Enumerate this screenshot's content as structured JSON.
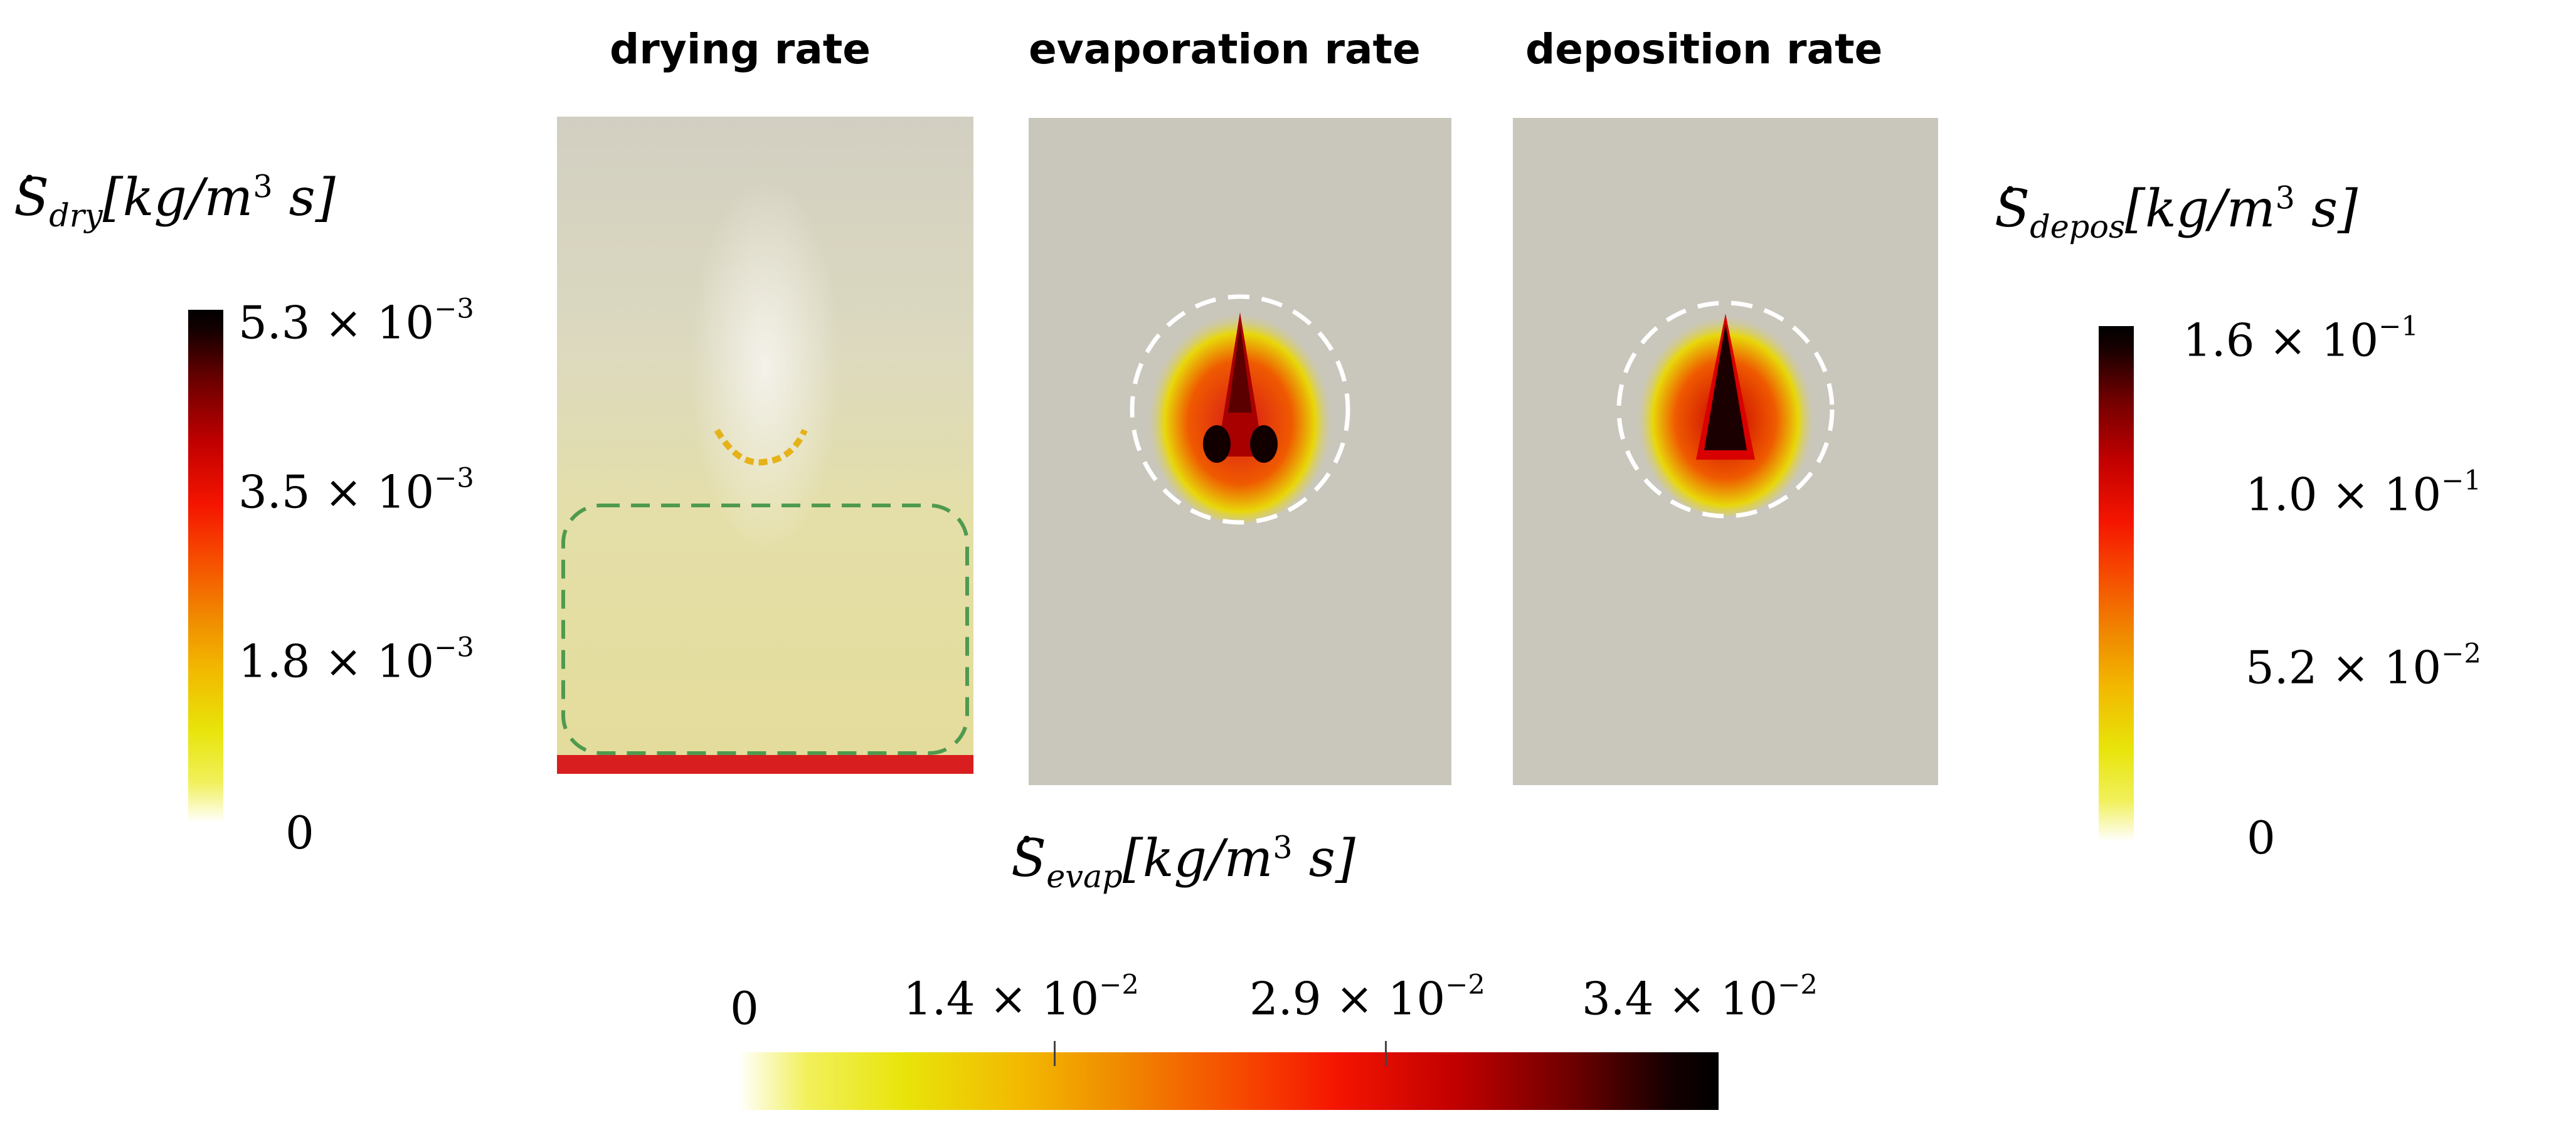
{
  "panels": {
    "drying": {
      "title": "drying rate"
    },
    "evaporation": {
      "title": "evaporation rate"
    },
    "deposition": {
      "title": "deposition rate"
    }
  },
  "colorbars": {
    "drying": {
      "label_sym": "S",
      "label_sub": "dry",
      "label_units": "[kg/m",
      "label_units_tail": " s]",
      "ticks": [
        {
          "mantissa": "5.3 × 10",
          "exp": "−3"
        },
        {
          "mantissa": "3.5 × 10",
          "exp": "−3"
        },
        {
          "mantissa": "1.8 × 10",
          "exp": "−3"
        },
        {
          "mantissa": "0",
          "exp": ""
        }
      ]
    },
    "evaporation": {
      "label_sym": "S",
      "label_sub": "evap",
      "label_units": "[kg/m",
      "label_units_tail": " s]",
      "ticks": [
        {
          "mantissa": "0",
          "exp": ""
        },
        {
          "mantissa": "1.4 × 10",
          "exp": "−2"
        },
        {
          "mantissa": "2.9 × 10",
          "exp": "−2"
        },
        {
          "mantissa": "3.4 × 10",
          "exp": "−2"
        }
      ]
    },
    "deposition": {
      "label_sym": "S",
      "label_sub": "depos",
      "label_units": "[kg/m",
      "label_units_tail": " s]",
      "ticks": [
        {
          "mantissa": "1.6 × 10",
          "exp": "−1"
        },
        {
          "mantissa": "1.0 × 10",
          "exp": "−1"
        },
        {
          "mantissa": "5.2 × 10",
          "exp": "−2"
        },
        {
          "mantissa": "0",
          "exp": ""
        }
      ]
    }
  },
  "units_cube": "3",
  "colors": {
    "panel_bg": "#c9c6bc",
    "green_marker": "#4f9a4f",
    "white_marker": "#ffffff"
  }
}
